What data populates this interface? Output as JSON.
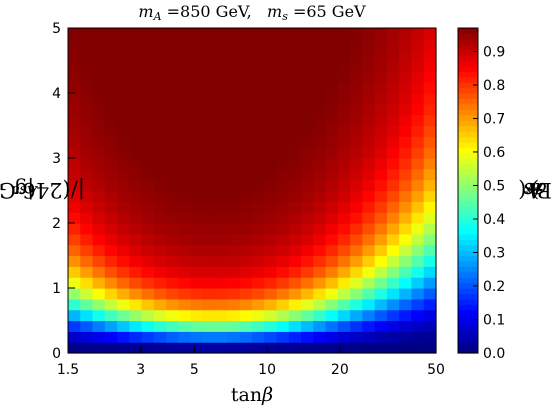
{
  "chart_data": {
    "type": "heatmap",
    "title": {
      "m_label": "m",
      "m_sub": "A",
      "m_value": "=850 GeV,",
      "s_label": "m",
      "s_sub": "s",
      "s_value": "=65 GeV"
    },
    "xlabel": {
      "main": "tan",
      "greek": "β"
    },
    "ylabel": {
      "open": "|g",
      "sub": "Asa",
      "close": "|/(246 GeV)"
    },
    "colorbar_label": {
      "open": "Br(",
      "sym": "A",
      "arrow": "→",
      "sym2": "as",
      "close": ")"
    },
    "x_scale": "log",
    "xlim": [
      1.5,
      50
    ],
    "ylim": [
      0,
      5
    ],
    "x_ticks": [
      1.5,
      3,
      5,
      10,
      20,
      50
    ],
    "x_tick_labels": [
      "1.5",
      "3",
      "5",
      "10",
      "20",
      "50"
    ],
    "y_ticks": [
      0,
      1,
      2,
      3,
      4,
      5
    ],
    "y_tick_labels": [
      "0",
      "1",
      "2",
      "3",
      "4",
      "5"
    ],
    "colorbar_range": [
      0.0,
      0.97
    ],
    "colorbar_ticks": [
      0.0,
      0.1,
      0.2,
      0.3,
      0.4,
      0.5,
      0.6,
      0.7,
      0.8,
      0.9
    ],
    "colorbar_tick_labels": [
      "0.0",
      "0.1",
      "0.2",
      "0.3",
      "0.4",
      "0.5",
      "0.6",
      "0.7",
      "0.8",
      "0.9"
    ],
    "colormap": "jet",
    "grid_nx": 30,
    "grid_ny": 30,
    "model": {
      "description_of_values": "Br approx 1/(1 + (tan_beta/6 + 6/tan_beta)^2 / (20 g^2))",
      "ref_tan_beta": 6,
      "coupling_scale": 20
    }
  }
}
